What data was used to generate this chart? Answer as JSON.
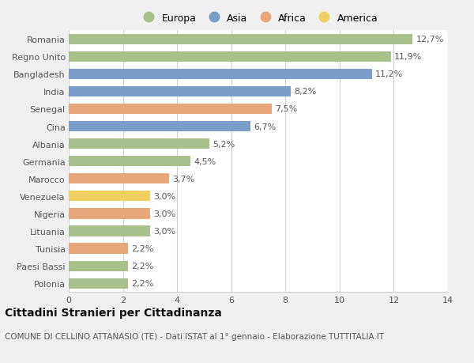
{
  "categories": [
    "Romania",
    "Regno Unito",
    "Bangladesh",
    "India",
    "Senegal",
    "Cina",
    "Albania",
    "Germania",
    "Marocco",
    "Venezuela",
    "Nigeria",
    "Lituania",
    "Tunisia",
    "Paesi Bassi",
    "Polonia"
  ],
  "values": [
    12.7,
    11.9,
    11.2,
    8.2,
    7.5,
    6.7,
    5.2,
    4.5,
    3.7,
    3.0,
    3.0,
    3.0,
    2.2,
    2.2,
    2.2
  ],
  "labels": [
    "12,7%",
    "11,9%",
    "11,2%",
    "8,2%",
    "7,5%",
    "6,7%",
    "5,2%",
    "4,5%",
    "3,7%",
    "3,0%",
    "3,0%",
    "3,0%",
    "2,2%",
    "2,2%",
    "2,2%"
  ],
  "continents": [
    "Europa",
    "Europa",
    "Asia",
    "Asia",
    "Africa",
    "Asia",
    "Europa",
    "Europa",
    "Africa",
    "America",
    "Africa",
    "Europa",
    "Africa",
    "Europa",
    "Europa"
  ],
  "colors": {
    "Europa": "#a8c08a",
    "Asia": "#7b9dc9",
    "Africa": "#e8a87c",
    "America": "#f0d060"
  },
  "legend_order": [
    "Europa",
    "Asia",
    "Africa",
    "America"
  ],
  "xlim": [
    0,
    14
  ],
  "xticks": [
    0,
    2,
    4,
    6,
    8,
    10,
    12,
    14
  ],
  "title": "Cittadini Stranieri per Cittadinanza",
  "subtitle": "COMUNE DI CELLINO ATTANASIO (TE) - Dati ISTAT al 1° gennaio - Elaborazione TUTTITALIA.IT",
  "bg_color": "#f0f0f0",
  "plot_bg_color": "#ffffff",
  "grid_color": "#d0d0d0",
  "bar_height": 0.6,
  "label_fontsize": 8,
  "tick_fontsize": 8,
  "title_fontsize": 10,
  "subtitle_fontsize": 7.5
}
